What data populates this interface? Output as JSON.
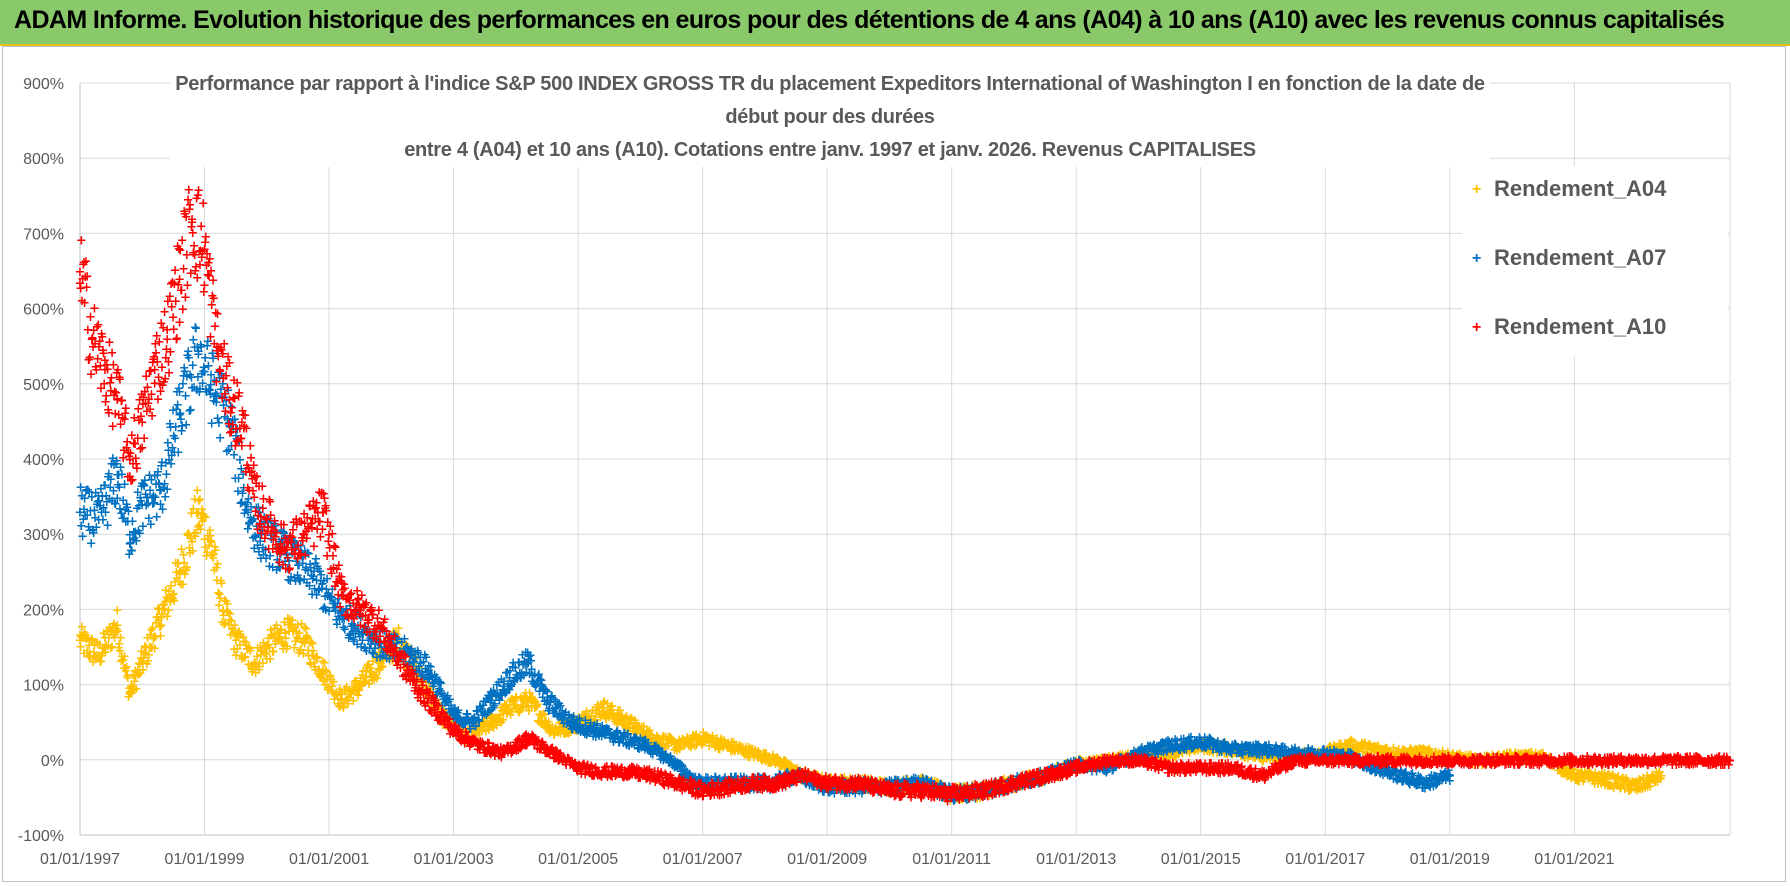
{
  "banner": {
    "title": "ADAM Informe. Evolution historique des performances en euros pour des détentions de 4 ans (A04) à 10 ans (A10) avec les revenus connus capitalisés"
  },
  "colors": {
    "banner_bg": "#8ac96a",
    "banner_border": "#e6c020",
    "A04": "#ffc000",
    "A07": "#0070c0",
    "A10": "#ff0000"
  },
  "chart_data": {
    "type": "scatter",
    "title_lines": [
      "Performance par rapport à l'indice S&P 500 INDEX GROSS TR  du placement Expeditors International of Washington I en fonction de la date de",
      "début pour des durées",
      "entre 4 (A04) et 10 ans (A10).  Cotations entre janv. 1997 et janv. 2026. Revenus CAPITALISES"
    ],
    "y_ticks": [
      "900%",
      "800%",
      "700%",
      "600%",
      "500%",
      "400%",
      "300%",
      "200%",
      "100%",
      "0%",
      "-100%"
    ],
    "x_ticks": [
      "01/01/1997",
      "01/01/1999",
      "01/01/2001",
      "01/01/2003",
      "01/01/2005",
      "01/01/2007",
      "01/01/2009",
      "01/01/2011",
      "01/01/2013",
      "01/01/2015",
      "01/01/2017",
      "01/01/2019",
      "01/01/2021"
    ],
    "ylim": [
      -100,
      900
    ],
    "xlim": [
      1997.0,
      2023.5
    ],
    "marker": "+",
    "legend": [
      "Rendement_A04",
      "Rendement_A07",
      "Rendement_A10"
    ],
    "series": [
      {
        "name": "Rendement_A04",
        "color": "#ffc000",
        "x": [
          1997.0,
          1997.3,
          1997.6,
          1997.8,
          1998.0,
          1998.3,
          1998.6,
          1998.9,
          1999.1,
          1999.3,
          1999.5,
          1999.8,
          2000.0,
          2000.3,
          2000.6,
          2000.9,
          2001.2,
          2001.5,
          2001.8,
          2002.1,
          2002.4,
          2002.8,
          2003.2,
          2003.6,
          2003.9,
          2004.2,
          2004.6,
          2005.0,
          2005.4,
          2005.8,
          2006.2,
          2006.6,
          2007.0,
          2007.4,
          2007.8,
          2008.2,
          2008.6,
          2009.0,
          2009.5,
          2010.0,
          2010.5,
          2011.0,
          2011.5,
          2012.0,
          2012.5,
          2013.0,
          2013.5,
          2014.0,
          2014.5,
          2015.0,
          2015.5,
          2016.0,
          2016.5,
          2017.0,
          2017.4,
          2017.8,
          2018.2,
          2018.6,
          2019.0,
          2019.5,
          2020.0,
          2020.5,
          2021.0,
          2021.5,
          2022.0,
          2022.4
        ],
        "y": [
          160,
          140,
          180,
          90,
          130,
          190,
          250,
          330,
          290,
          200,
          160,
          130,
          150,
          170,
          160,
          120,
          80,
          100,
          130,
          160,
          120,
          60,
          30,
          50,
          70,
          80,
          40,
          50,
          70,
          50,
          30,
          20,
          30,
          20,
          10,
          0,
          -20,
          -30,
          -30,
          -35,
          -30,
          -45,
          -40,
          -30,
          -20,
          -5,
          0,
          5,
          10,
          20,
          15,
          5,
          5,
          10,
          20,
          15,
          10,
          10,
          5,
          0,
          5,
          5,
          -20,
          -25,
          -35,
          -20
        ]
      },
      {
        "name": "Rendement_A07",
        "color": "#0070c0",
        "x": [
          1997.0,
          1997.3,
          1997.6,
          1997.8,
          1998.0,
          1998.3,
          1998.6,
          1998.9,
          1999.1,
          1999.4,
          1999.7,
          1999.9,
          2000.2,
          2000.5,
          2000.8,
          2001.1,
          2001.4,
          2001.7,
          2002.0,
          2002.3,
          2002.6,
          2003.0,
          2003.3,
          2003.6,
          2003.9,
          2004.2,
          2004.5,
          2004.9,
          2005.3,
          2005.7,
          2006.1,
          2006.5,
          2006.9,
          2007.3,
          2007.7,
          2008.1,
          2008.5,
          2009.0,
          2009.5,
          2010.0,
          2010.5,
          2011.0,
          2011.5,
          2012.0,
          2012.5,
          2013.0,
          2013.5,
          2014.0,
          2014.5,
          2015.0,
          2015.5,
          2016.0,
          2016.5,
          2017.0,
          2017.4,
          2017.8,
          2018.2,
          2018.6,
          2019.0
        ],
        "y": [
          330,
          320,
          380,
          300,
          340,
          360,
          460,
          540,
          500,
          450,
          330,
          300,
          280,
          260,
          240,
          200,
          180,
          160,
          150,
          140,
          120,
          60,
          50,
          80,
          110,
          130,
          80,
          50,
          40,
          30,
          20,
          0,
          -30,
          -30,
          -30,
          -30,
          -20,
          -35,
          -35,
          -35,
          -30,
          -45,
          -40,
          -30,
          -20,
          -5,
          -10,
          10,
          20,
          25,
          15,
          15,
          10,
          10,
          5,
          -10,
          -20,
          -30,
          -20
        ]
      },
      {
        "name": "Rendement_A10",
        "color": "#ff0000",
        "x": [
          1997.0,
          1997.2,
          1997.4,
          1997.6,
          1997.8,
          1998.0,
          1998.2,
          1998.4,
          1998.6,
          1998.8,
          1999.0,
          1999.2,
          1999.4,
          1999.6,
          1999.8,
          2000.0,
          2000.3,
          2000.6,
          2000.9,
          2001.2,
          2001.5,
          2001.8,
          2002.1,
          2002.4,
          2002.7,
          2003.0,
          2003.4,
          2003.8,
          2004.2,
          2004.6,
          2005.0,
          2005.4,
          2005.8,
          2006.2,
          2006.6,
          2007.0,
          2007.4,
          2007.8,
          2008.2,
          2008.6,
          2009.0,
          2009.5,
          2010.0,
          2010.5,
          2011.0,
          2011.5,
          2012.0,
          2012.5,
          2013.0,
          2013.5,
          2014.0,
          2014.5,
          2015.0,
          2015.5,
          2016.0,
          2016.5,
          2017.0,
          2018.0,
          2019.0,
          2020.0,
          2021.0,
          2022.0,
          2023.0,
          2023.5
        ],
        "y": [
          650,
          560,
          520,
          480,
          400,
          450,
          520,
          560,
          640,
          720,
          680,
          550,
          480,
          450,
          350,
          320,
          280,
          300,
          330,
          220,
          200,
          180,
          140,
          100,
          70,
          40,
          20,
          10,
          30,
          10,
          -10,
          -15,
          -15,
          -20,
          -30,
          -40,
          -35,
          -30,
          -30,
          -20,
          -30,
          -30,
          -40,
          -40,
          -45,
          -40,
          -30,
          -20,
          -10,
          0,
          0,
          -10,
          -10,
          -10,
          -20,
          0,
          0,
          0,
          0,
          0,
          0,
          0,
          0,
          0
        ]
      }
    ]
  }
}
